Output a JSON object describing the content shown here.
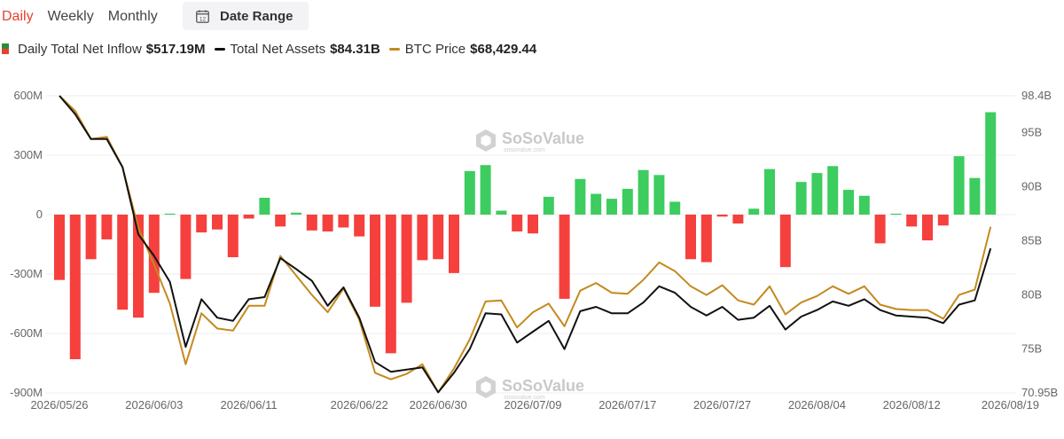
{
  "tabs": [
    {
      "label": "Daily",
      "active": true
    },
    {
      "label": "Weekly",
      "active": false
    },
    {
      "label": "Monthly",
      "active": false
    }
  ],
  "date_range": {
    "label": "Date Range",
    "icon": "calendar-icon",
    "icon_text": "12"
  },
  "legend": [
    {
      "label": "Daily Total Net Inflow",
      "value": "$517.19M",
      "swatch": "dual",
      "colors": [
        "#2e8b3e",
        "#e8412c"
      ]
    },
    {
      "label": "Total Net Assets",
      "value": "$84.31B",
      "swatch": "line",
      "color": "#111111"
    },
    {
      "label": "BTC Price",
      "value": "$68,429.44",
      "swatch": "line",
      "color": "#c48a1e"
    }
  ],
  "watermark": {
    "brand": "SoSoValue",
    "url": "sosovalue.com"
  },
  "colors": {
    "positive": "#3dcc5f",
    "negative": "#f5403d",
    "assets_line": "#111111",
    "btc_line": "#c48a1e",
    "grid": "#ececec"
  },
  "chart_data": {
    "type": "bar",
    "title": "",
    "left_axis": {
      "ticks": [
        600,
        300,
        0,
        -300,
        -600,
        -900
      ],
      "tick_labels": [
        "600M",
        "300M",
        "0",
        "-300M",
        "-600M",
        "-900M"
      ],
      "range": [
        -900,
        600
      ],
      "unit": "M"
    },
    "right_axis": {
      "ticks": [
        98.4,
        95,
        90,
        85,
        80,
        75,
        70.95
      ],
      "tick_labels": [
        "98.4B",
        "95B",
        "90B",
        "85B",
        "80B",
        "75B",
        "70.95B"
      ],
      "range": [
        70.95,
        98.4
      ],
      "unit": "B"
    },
    "x_tick_labels": [
      "2026/05/26",
      "2026/06/03",
      "2026/06/11",
      "2026/06/22",
      "2026/06/30",
      "2026/07/09",
      "2026/07/17",
      "2026/07/27",
      "2026/08/04",
      "2026/08/12",
      "2026/08/19"
    ],
    "x_tick_index": [
      0,
      6,
      12,
      19,
      24,
      30,
      36,
      42,
      48,
      54,
      59
    ],
    "series": [
      {
        "name": "Daily Total Net Inflow",
        "type": "bar",
        "axis": "left",
        "values": [
          -330,
          -730,
          -225,
          -125,
          -480,
          -520,
          -395,
          5,
          -325,
          -90,
          -75,
          -215,
          -20,
          85,
          -60,
          10,
          -80,
          -85,
          -65,
          -110,
          -465,
          -700,
          -445,
          -230,
          -225,
          -295,
          220,
          250,
          20,
          -85,
          -95,
          90,
          -425,
          180,
          105,
          80,
          130,
          225,
          200,
          65,
          -225,
          -240,
          -10,
          -45,
          30,
          230,
          -265,
          165,
          210,
          245,
          125,
          95,
          -145,
          5,
          -60,
          -130,
          -55,
          295,
          185,
          517
        ]
      },
      {
        "name": "Total Net Assets",
        "type": "line",
        "axis": "right",
        "values": [
          98.4,
          96.7,
          94.4,
          94.4,
          91.8,
          85.6,
          83.6,
          81.2,
          75.2,
          79.6,
          77.9,
          77.6,
          79.6,
          79.8,
          83.4,
          82.4,
          81.3,
          79.0,
          80.7,
          77.9,
          73.8,
          72.9,
          73.1,
          73.3,
          71.0,
          72.8,
          75.0,
          78.3,
          78.2,
          75.6,
          76.6,
          77.6,
          75.0,
          78.5,
          78.9,
          78.3,
          78.3,
          79.3,
          80.8,
          80.2,
          78.9,
          78.1,
          78.9,
          77.7,
          77.9,
          79.0,
          76.8,
          78.0,
          78.6,
          79.4,
          79.0,
          79.6,
          78.6,
          78.1,
          78.0,
          77.9,
          77.4,
          79.1,
          79.5,
          84.3
        ]
      },
      {
        "name": "BTC Price",
        "type": "line",
        "axis": "right",
        "values": [
          98.4,
          97.0,
          94.4,
          94.6,
          91.8,
          86.2,
          82.8,
          79.2,
          73.6,
          78.3,
          76.9,
          76.7,
          79.0,
          79.0,
          83.6,
          81.8,
          80.0,
          78.4,
          80.6,
          77.7,
          72.8,
          72.2,
          72.7,
          73.6,
          71.0,
          73.2,
          75.9,
          79.4,
          79.5,
          77.0,
          78.4,
          79.2,
          77.1,
          80.4,
          81.1,
          80.2,
          80.1,
          81.4,
          83.0,
          82.2,
          80.8,
          80.0,
          80.9,
          79.5,
          79.1,
          80.8,
          78.2,
          79.3,
          79.9,
          80.8,
          80.1,
          80.8,
          79.1,
          78.7,
          78.6,
          78.6,
          77.8,
          80.0,
          80.5,
          86.3
        ]
      }
    ],
    "grid": true,
    "legend_position": "top-left"
  }
}
